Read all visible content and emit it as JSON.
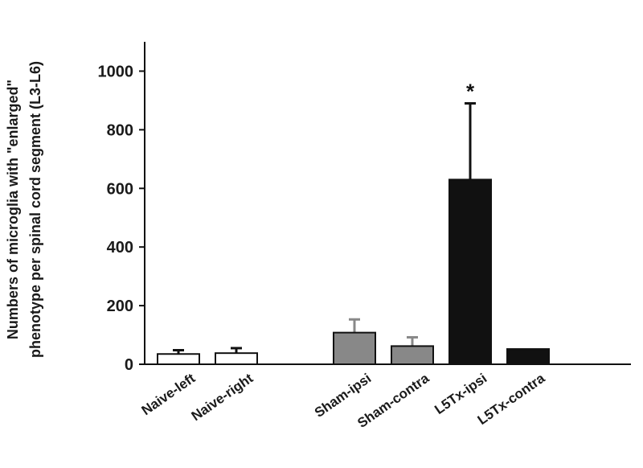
{
  "chart_data": {
    "type": "bar",
    "title": "",
    "xlabel": "",
    "ylabel": [
      "Numbers of microglia with \"enlarged\"",
      "phenotype per spinal cord segment (L3-L6)"
    ],
    "ylim": [
      0,
      1100
    ],
    "yticks": [
      0,
      200,
      400,
      600,
      800,
      1000
    ],
    "grid": false,
    "legend": "none",
    "categories": [
      "Naive-left",
      "Naive-right",
      "Sham-ipsi",
      "Sham-contra",
      "L5Tx-ipsi",
      "L5Tx-contra"
    ],
    "values": [
      35,
      38,
      108,
      62,
      630,
      52
    ],
    "errors": [
      13,
      17,
      45,
      30,
      260,
      0
    ],
    "gap_after_index": 1,
    "bar_colors": [
      "#ffffff",
      "#ffffff",
      "#888888",
      "#888888",
      "#111111",
      "#111111"
    ],
    "annotations": [
      {
        "category": "L5Tx-ipsi",
        "text": "*"
      }
    ]
  }
}
